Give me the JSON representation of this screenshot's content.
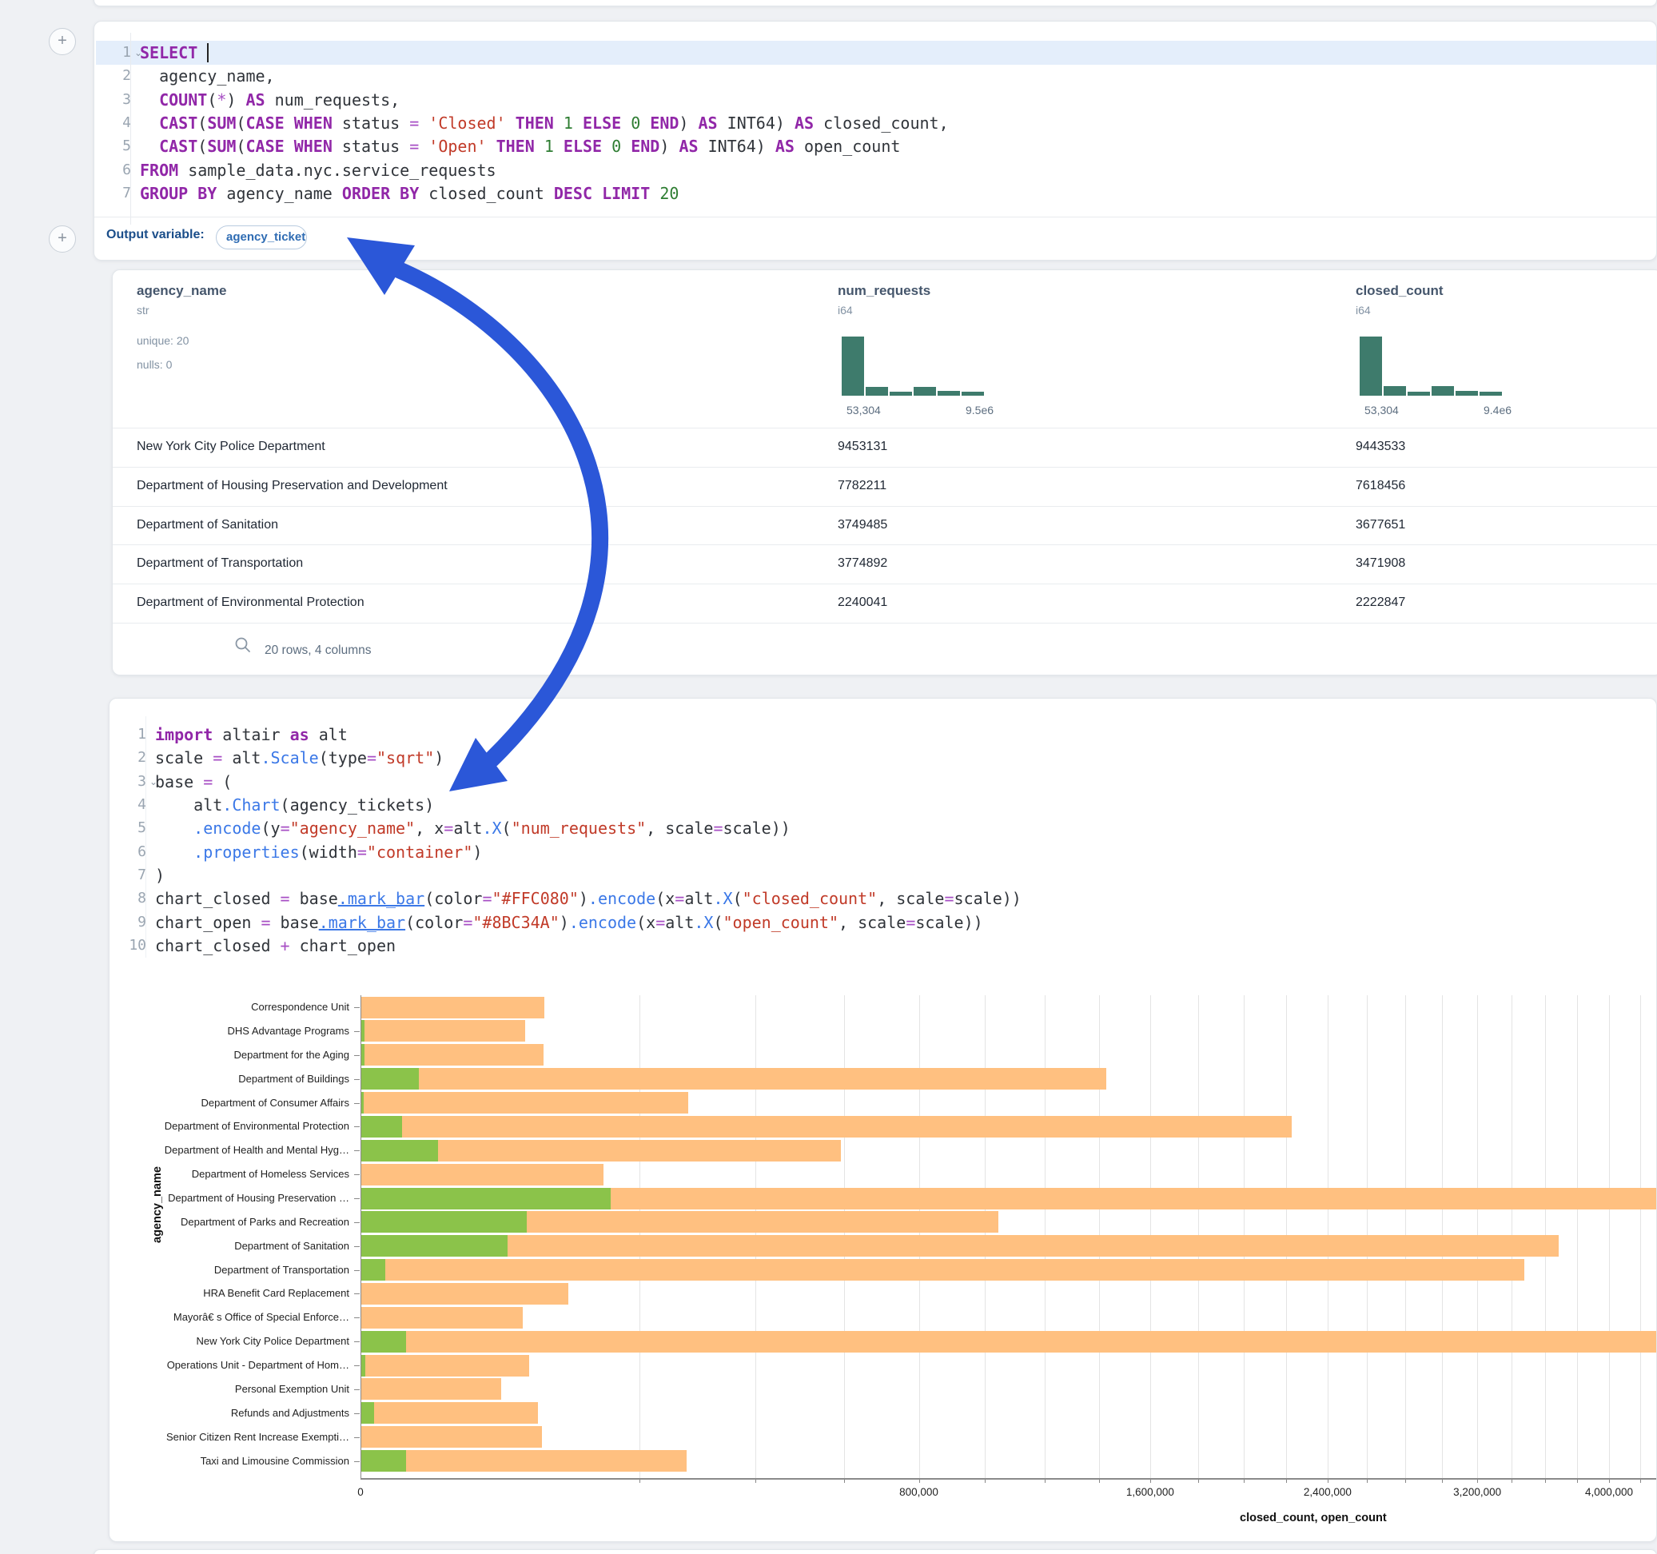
{
  "colors": {
    "page_bg": "#eff1f4",
    "card_bg": "#ffffff",
    "accent_blue": "#2b57d8",
    "hist_green": "#3e7b6c",
    "bar_closed": "#FFC080",
    "bar_open": "#8BC34A",
    "line_highlight": "#e4eefb",
    "keyword": "#9127a8",
    "string": "#c13a28",
    "number_tok": "#2e7d32",
    "function_tok": "#3b78e7"
  },
  "sql_cell": {
    "lines": [
      {
        "num": "1",
        "chevron": true,
        "highlight": true,
        "cursor_after": "SELECT ",
        "tokens": [
          [
            "kw",
            "SELECT"
          ],
          [
            "pl",
            " "
          ]
        ]
      },
      {
        "num": "2",
        "tokens": [
          [
            "pl",
            "  agency_name,"
          ]
        ]
      },
      {
        "num": "3",
        "tokens": [
          [
            "pl",
            "  "
          ],
          [
            "kw",
            "COUNT"
          ],
          [
            "pl",
            "("
          ],
          [
            "op",
            "*"
          ],
          [
            "pl",
            ") "
          ],
          [
            "kw",
            "AS"
          ],
          [
            "pl",
            " num_requests,"
          ]
        ]
      },
      {
        "num": "4",
        "tokens": [
          [
            "pl",
            "  "
          ],
          [
            "kw",
            "CAST"
          ],
          [
            "pl",
            "("
          ],
          [
            "kw",
            "SUM"
          ],
          [
            "pl",
            "("
          ],
          [
            "kw",
            "CASE"
          ],
          [
            "pl",
            " "
          ],
          [
            "kw",
            "WHEN"
          ],
          [
            "pl",
            " status "
          ],
          [
            "op",
            "="
          ],
          [
            "pl",
            " "
          ],
          [
            "str",
            "'Closed'"
          ],
          [
            "pl",
            " "
          ],
          [
            "kw",
            "THEN"
          ],
          [
            "pl",
            " "
          ],
          [
            "num",
            "1"
          ],
          [
            "pl",
            " "
          ],
          [
            "kw",
            "ELSE"
          ],
          [
            "pl",
            " "
          ],
          [
            "num",
            "0"
          ],
          [
            "pl",
            " "
          ],
          [
            "kw",
            "END"
          ],
          [
            "pl",
            ") "
          ],
          [
            "kw",
            "AS"
          ],
          [
            "pl",
            " INT64) "
          ],
          [
            "kw",
            "AS"
          ],
          [
            "pl",
            " closed_count,"
          ]
        ]
      },
      {
        "num": "5",
        "tokens": [
          [
            "pl",
            "  "
          ],
          [
            "kw",
            "CAST"
          ],
          [
            "pl",
            "("
          ],
          [
            "kw",
            "SUM"
          ],
          [
            "pl",
            "("
          ],
          [
            "kw",
            "CASE"
          ],
          [
            "pl",
            " "
          ],
          [
            "kw",
            "WHEN"
          ],
          [
            "pl",
            " status "
          ],
          [
            "op",
            "="
          ],
          [
            "pl",
            " "
          ],
          [
            "str",
            "'Open'"
          ],
          [
            "pl",
            " "
          ],
          [
            "kw",
            "THEN"
          ],
          [
            "pl",
            " "
          ],
          [
            "num",
            "1"
          ],
          [
            "pl",
            " "
          ],
          [
            "kw",
            "ELSE"
          ],
          [
            "pl",
            " "
          ],
          [
            "num",
            "0"
          ],
          [
            "pl",
            " "
          ],
          [
            "kw",
            "END"
          ],
          [
            "pl",
            ") "
          ],
          [
            "kw",
            "AS"
          ],
          [
            "pl",
            " INT64) "
          ],
          [
            "kw",
            "AS"
          ],
          [
            "pl",
            " open_count"
          ]
        ]
      },
      {
        "num": "6",
        "tokens": [
          [
            "kw",
            "FROM"
          ],
          [
            "pl",
            " sample_data.nyc.service_requests"
          ]
        ]
      },
      {
        "num": "7",
        "tokens": [
          [
            "kw",
            "GROUP"
          ],
          [
            "pl",
            " "
          ],
          [
            "kw",
            "BY"
          ],
          [
            "pl",
            " agency_name "
          ],
          [
            "kw",
            "ORDER"
          ],
          [
            "pl",
            " "
          ],
          [
            "kw",
            "BY"
          ],
          [
            "pl",
            " closed_count "
          ],
          [
            "kw",
            "DESC"
          ],
          [
            "pl",
            " "
          ],
          [
            "kw",
            "LIMIT"
          ],
          [
            "pl",
            " "
          ],
          [
            "num",
            "20"
          ]
        ]
      }
    ],
    "output_label": "Output variable:",
    "output_variable": "agency_tickets"
  },
  "table": {
    "columns": [
      {
        "name": "agency_name",
        "type": "str",
        "meta": [
          "unique: 20",
          "nulls: 0"
        ]
      },
      {
        "name": "num_requests",
        "type": "i64",
        "hist": {
          "heights": [
            74,
            11,
            5,
            11,
            6,
            5
          ],
          "min_label": "53,304",
          "max_label": "9.5e6"
        }
      },
      {
        "name": "closed_count",
        "type": "i64",
        "hist": {
          "heights": [
            74,
            12,
            5,
            12,
            6,
            5
          ],
          "min_label": "53,304",
          "max_label": "9.4e6"
        }
      }
    ],
    "rows": [
      {
        "agency_name": "New York City Police Department",
        "num_requests": "9453131",
        "closed_count": "9443533"
      },
      {
        "agency_name": "Department of Housing Preservation and Development",
        "num_requests": "7782211",
        "closed_count": "7618456"
      },
      {
        "agency_name": "Department of Sanitation",
        "num_requests": "3749485",
        "closed_count": "3677651"
      },
      {
        "agency_name": "Department of Transportation",
        "num_requests": "3774892",
        "closed_count": "3471908"
      },
      {
        "agency_name": "Department of Environmental Protection",
        "num_requests": "2240041",
        "closed_count": "2222847"
      }
    ],
    "footer": "20 rows, 4 columns"
  },
  "python_cell": {
    "lines": [
      {
        "num": "1",
        "tokens": [
          [
            "kw",
            "import"
          ],
          [
            "pl",
            " altair "
          ],
          [
            "kw",
            "as"
          ],
          [
            "pl",
            " alt"
          ]
        ]
      },
      {
        "num": "2",
        "tokens": [
          [
            "pl",
            "scale "
          ],
          [
            "op",
            "="
          ],
          [
            "pl",
            " alt"
          ],
          [
            "fn",
            ".Scale"
          ],
          [
            "pl",
            "(type"
          ],
          [
            "op",
            "="
          ],
          [
            "str",
            "\"sqrt\""
          ],
          [
            "pl",
            ")"
          ]
        ]
      },
      {
        "num": "3",
        "chevron": true,
        "tokens": [
          [
            "pl",
            "base "
          ],
          [
            "op",
            "="
          ],
          [
            "pl",
            " ("
          ]
        ]
      },
      {
        "num": "4",
        "tokens": [
          [
            "pl",
            "    alt"
          ],
          [
            "fn",
            ".Chart"
          ],
          [
            "pl",
            "(agency_tickets)"
          ]
        ]
      },
      {
        "num": "5",
        "tokens": [
          [
            "pl",
            "    "
          ],
          [
            "fn",
            ".encode"
          ],
          [
            "pl",
            "(y"
          ],
          [
            "op",
            "="
          ],
          [
            "str",
            "\"agency_name\""
          ],
          [
            "pl",
            ", x"
          ],
          [
            "op",
            "="
          ],
          [
            "pl",
            "alt"
          ],
          [
            "fn",
            ".X"
          ],
          [
            "pl",
            "("
          ],
          [
            "str",
            "\"num_requests\""
          ],
          [
            "pl",
            ", scale"
          ],
          [
            "op",
            "="
          ],
          [
            "pl",
            "scale))"
          ]
        ]
      },
      {
        "num": "6",
        "tokens": [
          [
            "pl",
            "    "
          ],
          [
            "fn",
            ".properties"
          ],
          [
            "pl",
            "(width"
          ],
          [
            "op",
            "="
          ],
          [
            "str",
            "\"container\""
          ],
          [
            "pl",
            ")"
          ]
        ]
      },
      {
        "num": "7",
        "tokens": [
          [
            "pl",
            ")"
          ]
        ]
      },
      {
        "num": "8",
        "tokens": [
          [
            "pl",
            "chart_closed "
          ],
          [
            "op",
            "="
          ],
          [
            "pl",
            " base"
          ],
          [
            "fnu",
            ".mark_bar"
          ],
          [
            "pl",
            "(color"
          ],
          [
            "op",
            "="
          ],
          [
            "str",
            "\"#FFC080\""
          ],
          [
            "pl",
            ")"
          ],
          [
            "fn",
            ".encode"
          ],
          [
            "pl",
            "(x"
          ],
          [
            "op",
            "="
          ],
          [
            "pl",
            "alt"
          ],
          [
            "fn",
            ".X"
          ],
          [
            "pl",
            "("
          ],
          [
            "str",
            "\"closed_count\""
          ],
          [
            "pl",
            ", scale"
          ],
          [
            "op",
            "="
          ],
          [
            "pl",
            "scale))"
          ]
        ]
      },
      {
        "num": "9",
        "tokens": [
          [
            "pl",
            "chart_open "
          ],
          [
            "op",
            "="
          ],
          [
            "pl",
            " base"
          ],
          [
            "fnu",
            ".mark_bar"
          ],
          [
            "pl",
            "(color"
          ],
          [
            "op",
            "="
          ],
          [
            "str",
            "\"#8BC34A\""
          ],
          [
            "pl",
            ")"
          ],
          [
            "fn",
            ".encode"
          ],
          [
            "pl",
            "(x"
          ],
          [
            "op",
            "="
          ],
          [
            "pl",
            "alt"
          ],
          [
            "fn",
            ".X"
          ],
          [
            "pl",
            "("
          ],
          [
            "str",
            "\"open_count\""
          ],
          [
            "pl",
            ", scale"
          ],
          [
            "op",
            "="
          ],
          [
            "pl",
            "scale))"
          ]
        ]
      },
      {
        "num": "10",
        "tokens": [
          [
            "pl",
            "chart_closed "
          ],
          [
            "op",
            "+"
          ],
          [
            "pl",
            " chart_open"
          ]
        ]
      }
    ]
  },
  "chart_data": {
    "type": "bar",
    "orientation": "horizontal",
    "x_scale_type": "sqrt",
    "xlabel": "closed_count, open_count",
    "ylabel": "agency_name",
    "legend_position": "none",
    "grid": true,
    "x_tick_labels": [
      "0",
      "800,000",
      "1,600,000",
      "2,400,000",
      "3,200,000",
      "4,000,000"
    ],
    "x_tick_values": [
      0,
      800000,
      1600000,
      2400000,
      3200000,
      4000000
    ],
    "categories": [
      "Correspondence Unit",
      "DHS Advantage Programs",
      "Department for the Aging",
      "Department of Buildings",
      "Department of Consumer Affairs",
      "Department of Environmental Protection",
      "Department of Health and Mental Hyg…",
      "Department of Homeless Services",
      "Department of Housing Preservation …",
      "Department of Parks and Recreation",
      "Department of Sanitation",
      "Department of Transportation",
      "HRA Benefit Card Replacement",
      "Mayorâ€ s Office of Special Enforce…",
      "New York City Police Department",
      "Operations Unit - Department of Hom…",
      "Personal Exemption Unit",
      "Refunds and Adjustments",
      "Senior Citizen Rent Increase Exempti…",
      "Taxi and Limousine Commission"
    ],
    "series": [
      {
        "name": "closed_count",
        "color": "#FFC080",
        "values": [
          86000,
          69000,
          85000,
          1425000,
          274000,
          2220000,
          590000,
          150000,
          7618456,
          1040000,
          3677651,
          3471908,
          110000,
          67000,
          9443533,
          72000,
          50000,
          80000,
          84000,
          272000
        ]
      },
      {
        "name": "open_count",
        "color": "#8BC34A",
        "values": [
          0,
          25,
          25,
          8600,
          10,
          4200,
          15000,
          0,
          160000,
          70000,
          55000,
          1500,
          0,
          0,
          5100,
          40,
          0,
          400,
          0,
          5100
        ]
      }
    ]
  }
}
